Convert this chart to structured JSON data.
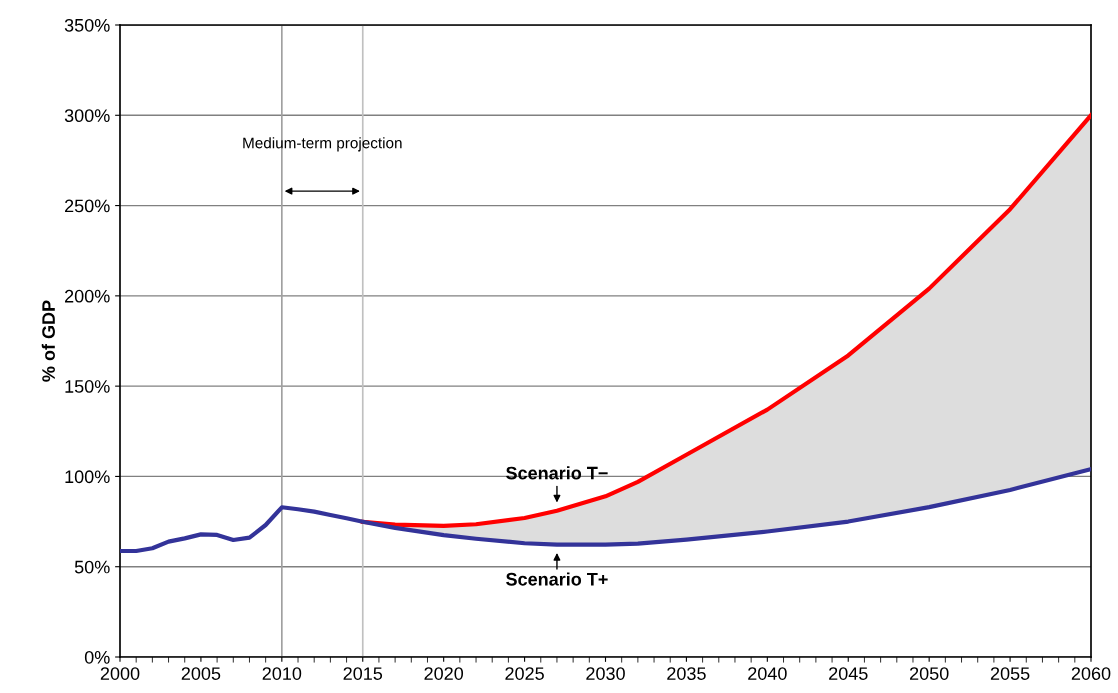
{
  "chart_data": {
    "type": "line",
    "ylabel": "% of GDP",
    "x": [
      2000,
      2001,
      2002,
      2003,
      2004,
      2005,
      2006,
      2007,
      2008,
      2009,
      2010,
      2011,
      2012,
      2013,
      2014,
      2015,
      2017,
      2020,
      2022,
      2025,
      2027,
      2030,
      2032,
      2035,
      2040,
      2045,
      2050,
      2055,
      2060
    ],
    "series": [
      {
        "name": "Scenario T−",
        "color": "#ff0000",
        "values": [
          null,
          null,
          null,
          null,
          null,
          null,
          null,
          null,
          null,
          null,
          null,
          null,
          null,
          null,
          null,
          74.9,
          73.3,
          72.6,
          73.5,
          77,
          81,
          89,
          97,
          112,
          137,
          167,
          204,
          248,
          300
        ],
        "lower": [
          null,
          null,
          null,
          null,
          null,
          null,
          null,
          null,
          null,
          null,
          null,
          null,
          null,
          null,
          null,
          74.9,
          71.5,
          67.5,
          65.5,
          63,
          62.2,
          62.2,
          62.8,
          65,
          69.5,
          75,
          83,
          92.5,
          104
        ],
        "upper": [
          null,
          null,
          null,
          null,
          null,
          null,
          null,
          null,
          null,
          null,
          null,
          null,
          null,
          null,
          null,
          74.9,
          73.3,
          72.6,
          73.5,
          77,
          81,
          89,
          97,
          112,
          137,
          167,
          204,
          248,
          300
        ]
      },
      {
        "name": "Scenario T+",
        "color": "#333399",
        "values": [
          58.7,
          58.7,
          60.2,
          63.9,
          65.7,
          67.9,
          67.6,
          64.8,
          66.1,
          73.1,
          82.9,
          81.8,
          80.5,
          78.6,
          76.8,
          74.9,
          71.5,
          67.5,
          65.5,
          63,
          62.2,
          62.2,
          62.8,
          65,
          69.5,
          75,
          83,
          92.5,
          104
        ]
      }
    ],
    "xlim": [
      2000,
      2060
    ],
    "xticks": [
      2000,
      2005,
      2010,
      2015,
      2020,
      2025,
      2030,
      2035,
      2040,
      2045,
      2050,
      2055,
      2060
    ],
    "ylim": [
      0,
      350
    ],
    "yticks": [
      {
        "value": 0,
        "label": "0%"
      },
      {
        "value": 50,
        "label": "50%"
      },
      {
        "value": 100,
        "label": "100%"
      },
      {
        "value": 150,
        "label": "150%"
      },
      {
        "value": 200,
        "label": "200%"
      },
      {
        "value": 250,
        "label": "250%"
      },
      {
        "value": 300,
        "label": "300%"
      },
      {
        "value": 350,
        "label": "350%"
      }
    ],
    "grid": "y",
    "legend": false,
    "marker": "none",
    "line_style": "solid",
    "ref_lines": [
      {
        "axis": "x",
        "value": 2010,
        "color": "#a0a0a0"
      },
      {
        "axis": "x",
        "value": 2015,
        "color": "#c0c0c0"
      }
    ],
    "annotations": [
      "Medium-term projection"
    ]
  }
}
